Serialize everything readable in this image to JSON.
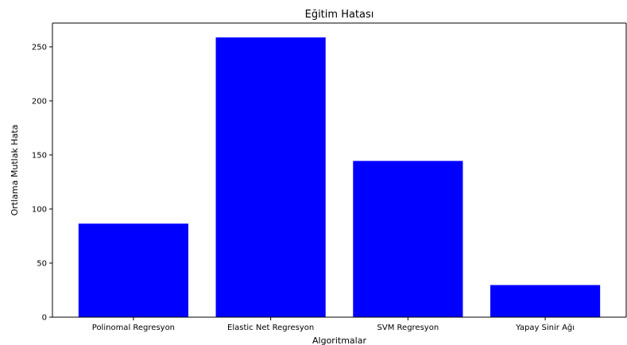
{
  "chart_data": {
    "type": "bar",
    "title": "Eğitim Hatası",
    "xlabel": "Algoritmalar",
    "ylabel": "Ortlama Mutlak Hata",
    "categories": [
      "Polinomal Regresyon",
      "Elastic Net Regresyon",
      "SVM Regresyon",
      "Yapay Sinir Ağı"
    ],
    "values": [
      86.5,
      258.7,
      144.5,
      29.7
    ],
    "ylim": [
      0,
      272
    ],
    "yticks": [
      0,
      50,
      100,
      150,
      200,
      250
    ],
    "bar_color": "#0000ff",
    "grid": false,
    "legend": "none"
  }
}
